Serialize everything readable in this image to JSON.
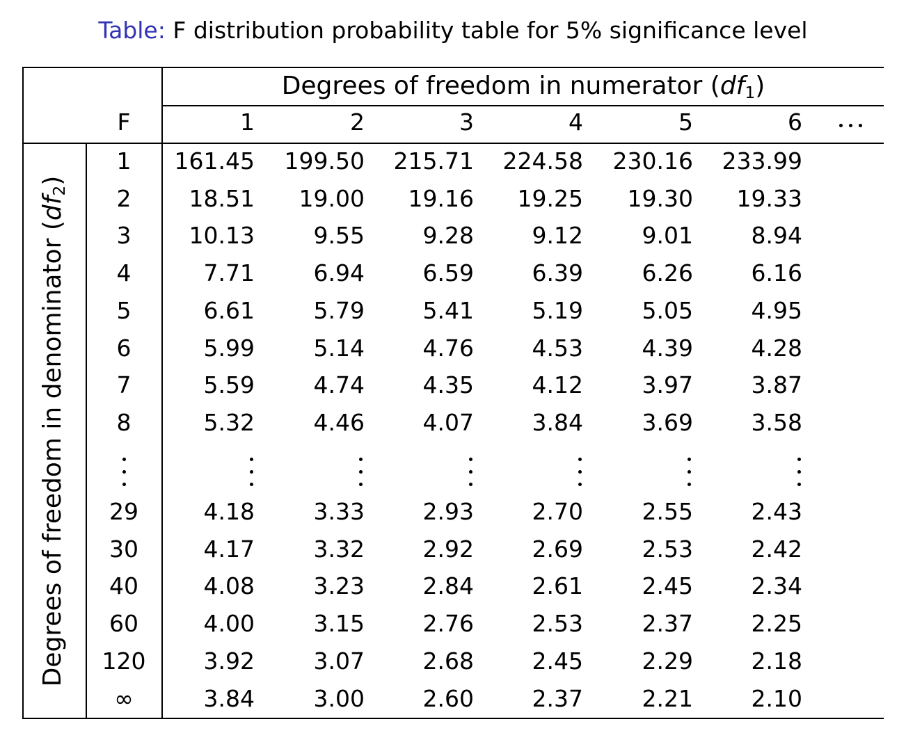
{
  "caption": {
    "label": "Table:",
    "text": "F distribution probability table for 5% significance level"
  },
  "header": {
    "corner_label": "F",
    "numerator_title": "Degrees of freedom in numerator (",
    "numerator_var": "df",
    "numerator_sub": "1",
    "numerator_close": ")",
    "columns": [
      "1",
      "2",
      "3",
      "4",
      "5",
      "6"
    ],
    "more_columns": "horizontal-ellipsis"
  },
  "side": {
    "denominator_title": "Degrees of freedom in denominator (",
    "denominator_var": "df",
    "denominator_sub": "2",
    "denominator_close": ")"
  },
  "rows_top": [
    {
      "df2": "1",
      "values": [
        "161.45",
        "199.50",
        "215.71",
        "224.58",
        "230.16",
        "233.99"
      ]
    },
    {
      "df2": "2",
      "values": [
        "18.51",
        "19.00",
        "19.16",
        "19.25",
        "19.30",
        "19.33"
      ]
    },
    {
      "df2": "3",
      "values": [
        "10.13",
        "9.55",
        "9.28",
        "9.12",
        "9.01",
        "8.94"
      ]
    },
    {
      "df2": "4",
      "values": [
        "7.71",
        "6.94",
        "6.59",
        "6.39",
        "6.26",
        "6.16"
      ]
    },
    {
      "df2": "5",
      "values": [
        "6.61",
        "5.79",
        "5.41",
        "5.19",
        "5.05",
        "4.95"
      ]
    },
    {
      "df2": "6",
      "values": [
        "5.99",
        "5.14",
        "4.76",
        "4.53",
        "4.39",
        "4.28"
      ]
    },
    {
      "df2": "7",
      "values": [
        "5.59",
        "4.74",
        "4.35",
        "4.12",
        "3.97",
        "3.87"
      ]
    },
    {
      "df2": "8",
      "values": [
        "5.32",
        "4.46",
        "4.07",
        "3.84",
        "3.69",
        "3.58"
      ]
    }
  ],
  "rows_bottom": [
    {
      "df2": "29",
      "values": [
        "4.18",
        "3.33",
        "2.93",
        "2.70",
        "2.55",
        "2.43"
      ]
    },
    {
      "df2": "30",
      "values": [
        "4.17",
        "3.32",
        "2.92",
        "2.69",
        "2.53",
        "2.42"
      ]
    },
    {
      "df2": "40",
      "values": [
        "4.08",
        "3.23",
        "2.84",
        "2.61",
        "2.45",
        "2.34"
      ]
    },
    {
      "df2": "60",
      "values": [
        "4.00",
        "3.15",
        "2.76",
        "2.53",
        "2.37",
        "2.25"
      ]
    },
    {
      "df2": "120",
      "values": [
        "3.92",
        "3.07",
        "2.68",
        "2.45",
        "2.29",
        "2.18"
      ]
    },
    {
      "df2": "∞",
      "values": [
        "3.84",
        "3.00",
        "2.60",
        "2.37",
        "2.21",
        "2.10"
      ]
    }
  ],
  "colors": {
    "caption_label": "#3333b3",
    "text": "#000000",
    "rules": "#000000"
  }
}
